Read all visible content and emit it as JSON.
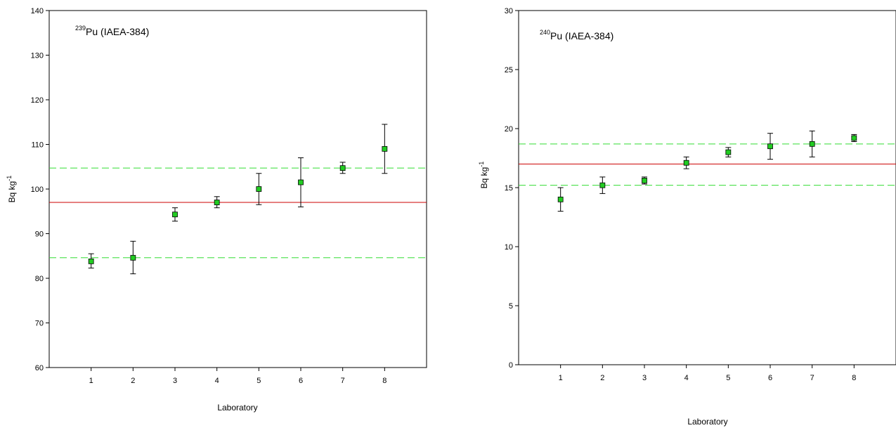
{
  "chart_data": [
    {
      "type": "scatter",
      "annotation": {
        "isotope_mass": "239",
        "text": "Pu (IAEA-384)"
      },
      "xlabel": "Laboratory",
      "ylabel": "Bq kg",
      "ylabel_sup": "-1",
      "xlim": [
        0,
        9
      ],
      "ylim": [
        60,
        140
      ],
      "xticks": [
        "1",
        "2",
        "3",
        "4",
        "5",
        "6",
        "7",
        "8"
      ],
      "yticks": [
        "60",
        "70",
        "80",
        "90",
        "100",
        "110",
        "120",
        "130",
        "140"
      ],
      "grid": false,
      "reference_lines": [
        {
          "kind": "mean",
          "y": 97.0,
          "color": "#cc0000",
          "style": "solid"
        },
        {
          "kind": "upper",
          "y": 104.7,
          "color": "#33dd33",
          "style": "dashed"
        },
        {
          "kind": "lower",
          "y": 84.6,
          "color": "#33dd33",
          "style": "dashed"
        }
      ],
      "marker_color": "#22cc22",
      "x": [
        1,
        2,
        3,
        4,
        5,
        6,
        7,
        8
      ],
      "y": [
        83.8,
        84.6,
        94.3,
        97.0,
        100.0,
        101.5,
        104.7,
        109.0
      ],
      "yerr_low": [
        82.3,
        81.0,
        92.8,
        95.8,
        96.5,
        96.0,
        103.5,
        103.5
      ],
      "yerr_high": [
        85.5,
        88.3,
        95.8,
        98.3,
        103.5,
        107.0,
        106.0,
        114.5
      ]
    },
    {
      "type": "scatter",
      "annotation": {
        "isotope_mass": "240",
        "text": "Pu (IAEA-384)"
      },
      "xlabel": "Laboratory",
      "ylabel": "Bq kg",
      "ylabel_sup": "-1",
      "xlim": [
        0,
        9
      ],
      "ylim": [
        0,
        30
      ],
      "xticks": [
        "1",
        "2",
        "3",
        "4",
        "5",
        "6",
        "7",
        "8"
      ],
      "yticks": [
        "0",
        "5",
        "10",
        "15",
        "20",
        "25",
        "30"
      ],
      "grid": false,
      "reference_lines": [
        {
          "kind": "mean",
          "y": 17.0,
          "color": "#cc0000",
          "style": "solid"
        },
        {
          "kind": "upper",
          "y": 18.7,
          "color": "#33dd33",
          "style": "dashed"
        },
        {
          "kind": "lower",
          "y": 15.2,
          "color": "#33dd33",
          "style": "dashed"
        }
      ],
      "marker_color": "#22cc22",
      "x": [
        1,
        2,
        3,
        4,
        5,
        6,
        7,
        8
      ],
      "y": [
        14.0,
        15.2,
        15.6,
        17.1,
        18.0,
        18.5,
        18.7,
        19.2
      ],
      "yerr_low": [
        13.0,
        14.5,
        15.3,
        16.6,
        17.6,
        17.4,
        17.6,
        18.9
      ],
      "yerr_high": [
        15.0,
        15.9,
        15.9,
        17.6,
        18.4,
        19.6,
        19.8,
        19.5
      ]
    }
  ]
}
